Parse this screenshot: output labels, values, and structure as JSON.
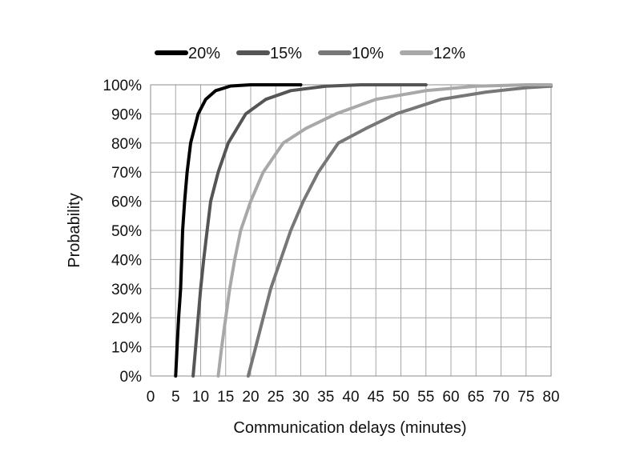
{
  "chart_data": {
    "type": "line",
    "title": "",
    "xlabel": "Communication delays (minutes)",
    "ylabel": "Probability",
    "xlim": [
      0,
      80
    ],
    "ylim": [
      0,
      100
    ],
    "x_ticks": [
      "0",
      "5",
      "10",
      "15",
      "20",
      "25",
      "30",
      "35",
      "40",
      "45",
      "50",
      "55",
      "60",
      "65",
      "70",
      "75",
      "80"
    ],
    "y_ticks": [
      "0%",
      "10%",
      "20%",
      "30%",
      "40%",
      "50%",
      "60%",
      "70%",
      "80%",
      "90%",
      "100%"
    ],
    "grid": true,
    "legend_position": "top",
    "series": [
      {
        "name": "20%",
        "color": "#000000",
        "points": [
          [
            5,
            0
          ],
          [
            5.3,
            10
          ],
          [
            5.6,
            20
          ],
          [
            6,
            30
          ],
          [
            6.2,
            40
          ],
          [
            6.4,
            50
          ],
          [
            6.8,
            60
          ],
          [
            7.3,
            70
          ],
          [
            8,
            80
          ],
          [
            9.5,
            90
          ],
          [
            11,
            95
          ],
          [
            13,
            98
          ],
          [
            16,
            99.6
          ],
          [
            20,
            100
          ],
          [
            30,
            100
          ]
        ]
      },
      {
        "name": "15%",
        "color": "#555555",
        "points": [
          [
            8.5,
            0
          ],
          [
            9,
            10
          ],
          [
            9.5,
            20
          ],
          [
            10,
            30
          ],
          [
            10.6,
            40
          ],
          [
            11.3,
            50
          ],
          [
            12,
            60
          ],
          [
            13.5,
            70
          ],
          [
            15.5,
            80
          ],
          [
            19,
            90
          ],
          [
            23,
            95
          ],
          [
            28,
            98
          ],
          [
            35,
            99.5
          ],
          [
            42,
            100
          ],
          [
            55,
            100
          ]
        ]
      },
      {
        "name": "10%",
        "color": "#777777",
        "points": [
          [
            19.5,
            0
          ],
          [
            21,
            10
          ],
          [
            22.5,
            20
          ],
          [
            24,
            30
          ],
          [
            26,
            40
          ],
          [
            28,
            50
          ],
          [
            30.5,
            60
          ],
          [
            33.5,
            70
          ],
          [
            37.5,
            80
          ],
          [
            43,
            85
          ],
          [
            49,
            90
          ],
          [
            58,
            95
          ],
          [
            67,
            97.5
          ],
          [
            75,
            99
          ],
          [
            80,
            99.5
          ]
        ]
      },
      {
        "name": "12%",
        "color": "#a8a8a8",
        "points": [
          [
            13.5,
            0
          ],
          [
            14.2,
            10
          ],
          [
            15,
            20
          ],
          [
            15.8,
            30
          ],
          [
            16.8,
            40
          ],
          [
            18,
            50
          ],
          [
            20,
            60
          ],
          [
            22.5,
            70
          ],
          [
            26.5,
            80
          ],
          [
            31,
            85
          ],
          [
            37,
            90
          ],
          [
            45,
            95
          ],
          [
            55,
            98
          ],
          [
            65,
            99.5
          ],
          [
            75,
            100
          ],
          [
            80,
            100
          ]
        ]
      }
    ]
  }
}
